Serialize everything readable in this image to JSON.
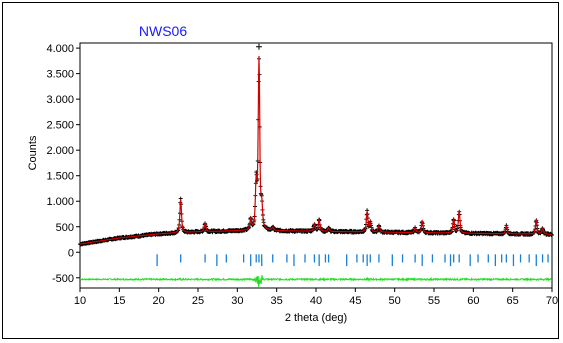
{
  "chart_data": {
    "type": "line",
    "title": "NWS06",
    "xlabel": "2 theta (deg)",
    "ylabel": "Counts",
    "xlim": [
      10,
      70
    ],
    "ylim": [
      -700,
      4100
    ],
    "x_ticks": [
      10,
      15,
      20,
      25,
      30,
      35,
      40,
      45,
      50,
      55,
      60,
      65,
      70
    ],
    "y_ticks": [
      {
        "value": 4000,
        "label": "4.000"
      },
      {
        "value": 3500,
        "label": "3.500"
      },
      {
        "value": 3000,
        "label": "3.000"
      },
      {
        "value": 2500,
        "label": "2.500"
      },
      {
        "value": 2000,
        "label": "2.000"
      },
      {
        "value": 1500,
        "label": "1.500"
      },
      {
        "value": 1000,
        "label": "1.000"
      },
      {
        "value": 500,
        "label": "500"
      },
      {
        "value": 0,
        "label": "0"
      },
      {
        "value": -500,
        "label": "-500"
      }
    ],
    "colors": {
      "title": "#1a1aff",
      "observed": "#000000",
      "calculated": "#d40000",
      "difference": "#22dd22",
      "reflections": "#1a7fd6"
    },
    "background": {
      "x": [
        10,
        15,
        20,
        25,
        30,
        35,
        40,
        45,
        50,
        55,
        60,
        65,
        70
      ],
      "y": [
        160,
        280,
        360,
        400,
        420,
        420,
        410,
        400,
        390,
        380,
        370,
        360,
        350
      ]
    },
    "peaks": [
      {
        "x": 22.8,
        "height": 650
      },
      {
        "x": 25.9,
        "height": 160
      },
      {
        "x": 31.7,
        "height": 200
      },
      {
        "x": 32.4,
        "height": 860
      },
      {
        "x": 32.75,
        "height": 3330
      },
      {
        "x": 33.1,
        "height": 420
      },
      {
        "x": 34.5,
        "height": 60
      },
      {
        "x": 39.8,
        "height": 140
      },
      {
        "x": 40.4,
        "height": 240
      },
      {
        "x": 41.6,
        "height": 70
      },
      {
        "x": 46.5,
        "height": 390
      },
      {
        "x": 46.9,
        "height": 170
      },
      {
        "x": 48.0,
        "height": 120
      },
      {
        "x": 52.6,
        "height": 90
      },
      {
        "x": 53.5,
        "height": 220
      },
      {
        "x": 57.5,
        "height": 280
      },
      {
        "x": 58.2,
        "height": 430
      },
      {
        "x": 64.2,
        "height": 150
      },
      {
        "x": 68.0,
        "height": 280
      },
      {
        "x": 68.8,
        "height": 120
      }
    ],
    "difference_offset": -530,
    "reflections": {
      "y_top": -40,
      "y_bottom": -200,
      "positions": [
        19.8,
        22.8,
        25.9,
        27.4,
        28.6,
        30.8,
        31.7,
        32.4,
        32.75,
        33.1,
        34.5,
        36.3,
        37.2,
        38.6,
        39.8,
        40.4,
        41.2,
        41.6,
        43.9,
        45.2,
        46.0,
        46.5,
        46.9,
        48.0,
        49.7,
        51.0,
        52.6,
        53.5,
        54.8,
        56.4,
        57.1,
        57.5,
        58.2,
        59.6,
        60.6,
        61.9,
        62.8,
        63.6,
        64.2,
        65.1,
        66.0,
        67.1,
        68.0,
        68.8,
        69.5
      ]
    }
  }
}
